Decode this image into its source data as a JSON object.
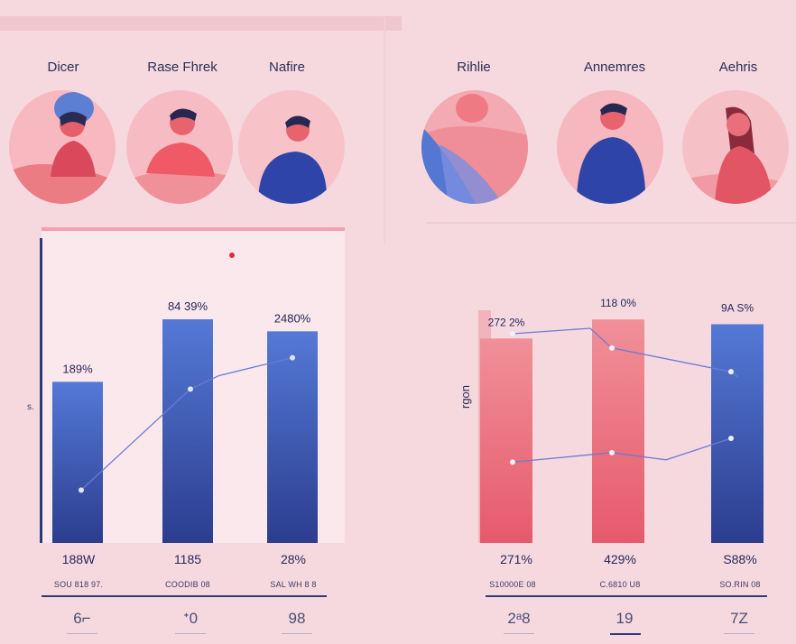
{
  "people": [
    {
      "name": "Dicer",
      "icon": "person-woman-icon"
    },
    {
      "name": "Rase Fhrek",
      "icon": "person-man-icon"
    },
    {
      "name": "Nafire",
      "icon": "person-man-icon"
    },
    {
      "name": "Rihlie",
      "icon": "person-abstract-icon"
    },
    {
      "name": "Annemres",
      "icon": "person-man-icon"
    },
    {
      "name": "Aehris",
      "icon": "person-woman-icon"
    }
  ],
  "chart_data": [
    {
      "type": "bar",
      "categories": [
        "",
        "",
        ""
      ],
      "values": [
        67,
        93,
        88
      ],
      "bar_labels": [
        "189%",
        "84 39%",
        "2480%"
      ],
      "line": [
        22,
        64,
        77
      ],
      "ylabel": "s.",
      "ylim": [
        0,
        120
      ],
      "colors": {
        "bar": "#4d6fd0",
        "line": "#6b7bd4"
      }
    },
    {
      "type": "bar",
      "categories": [
        "",
        "",
        ""
      ],
      "values": [
        86,
        94,
        92
      ],
      "bar_labels": [
        "272 2%",
        "118 0%",
        "9A S%"
      ],
      "bar_colors": [
        "#e96b7a",
        "#e96b7a",
        "#4d6fd0"
      ],
      "series": [
        {
          "values": [
            88,
            82,
            72
          ]
        },
        {
          "values": [
            34,
            38,
            44
          ]
        }
      ],
      "ylabel": "rgon",
      "ylim": [
        0,
        110
      ]
    }
  ],
  "footer": {
    "left": [
      {
        "value": "188W",
        "sub": "SOU 818 97.",
        "num": "6⌐"
      },
      {
        "value": "1185",
        "sub": "COODIB 08",
        "num": "ᐩ0"
      },
      {
        "value": "28%",
        "sub": "SAL WH 8 8",
        "num": "98"
      }
    ],
    "right": [
      {
        "value": "271%",
        "sub": "S10000E 08",
        "num": "2ᵃ8"
      },
      {
        "value": "429%",
        "sub": "C.6810 U8",
        "num": "19"
      },
      {
        "value": "S88%",
        "sub": "SO.RIN 08",
        "num": "7Z"
      }
    ]
  }
}
